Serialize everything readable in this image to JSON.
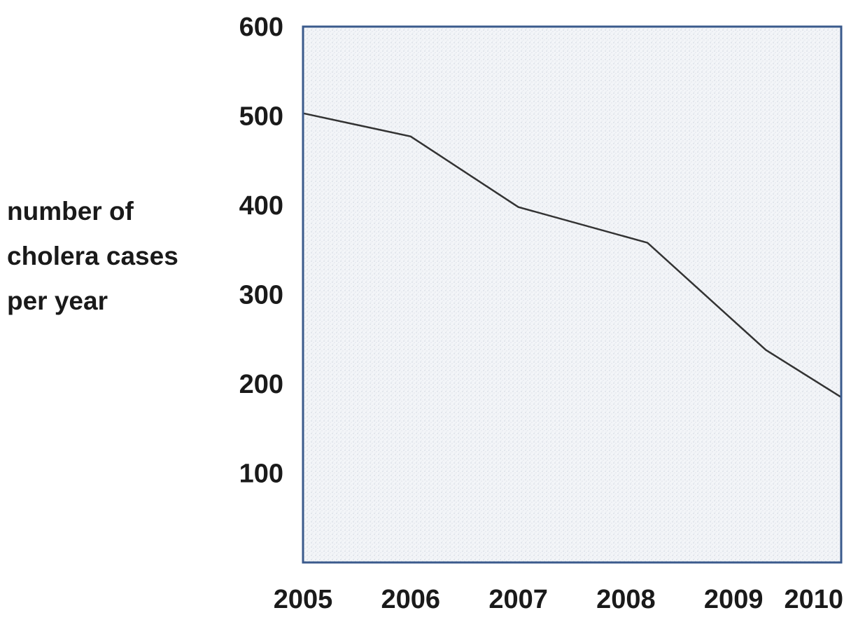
{
  "chart_data": {
    "type": "line",
    "title": "",
    "xlabel": "",
    "ylabel": "number of cholera cases per year",
    "ylabel_lines": [
      "number of",
      "cholera cases",
      "per year"
    ],
    "x_ticks": [
      "2005",
      "2006",
      "2007",
      "2008",
      "2009",
      "2010"
    ],
    "y_ticks": [
      "100",
      "200",
      "300",
      "400",
      "500",
      "600"
    ],
    "xlim": [
      2005,
      2010
    ],
    "ylim": [
      0,
      600
    ],
    "grid": false,
    "series": [
      {
        "x": [
          2005,
          2006,
          2007,
          2008.2,
          2009.3,
          2010
        ],
        "values": [
          503,
          477,
          398,
          358,
          238,
          185
        ]
      }
    ],
    "colors": {
      "line": "#333333",
      "plot_background": "#eef1f5",
      "frame": "#3a5a8c"
    }
  }
}
